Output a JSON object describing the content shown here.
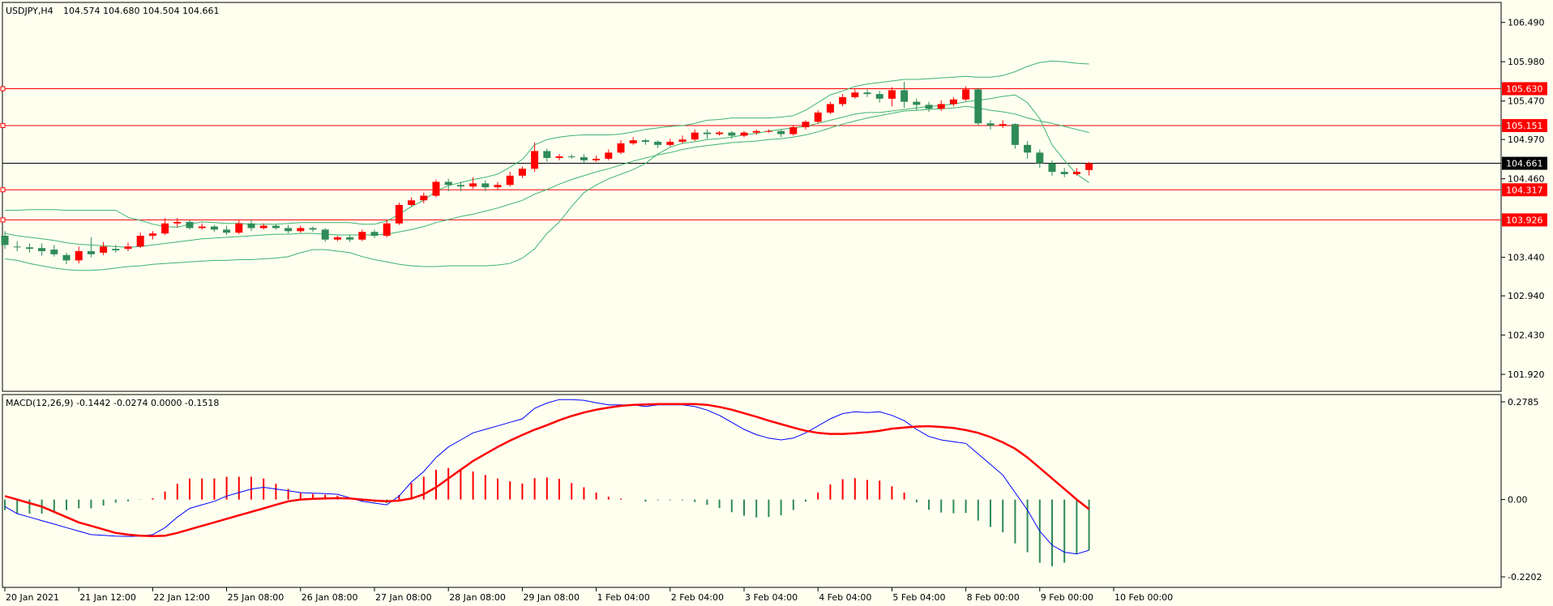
{
  "header": {
    "symbol": "USDJPY,H4",
    "ohlc": "104.574 104.680 104.504 104.661"
  },
  "macd_header": "MACD(12,26,9) -0.1442 -0.0274 0.0000 -0.1518",
  "colors": {
    "background": "#fffff0",
    "bull": "#ff0000",
    "bear": "#2e8b57",
    "bands": "#3cb371",
    "level_line": "#ff0000",
    "current_price": "#000000",
    "macd_line": "#0000ff",
    "signal_line": "#ff0000"
  },
  "price_axis": {
    "ticks": [
      "106.490",
      "105.980",
      "105.470",
      "104.970",
      "104.460",
      "103.440",
      "102.940",
      "102.430",
      "101.920"
    ],
    "level_labels": [
      "105.630",
      "105.151",
      "104.317",
      "103.926"
    ],
    "current_label": "104.661"
  },
  "macd_axis": {
    "ticks": [
      "0.2785",
      "0.00",
      "-0.2202"
    ]
  },
  "time_axis": {
    "labels": [
      "20 Jan 2021",
      "21 Jan 12:00",
      "22 Jan 12:00",
      "25 Jan 08:00",
      "26 Jan 08:00",
      "27 Jan 08:00",
      "28 Jan 08:00",
      "29 Jan 08:00",
      "1 Feb 04:00",
      "2 Feb 04:00",
      "3 Feb 04:00",
      "4 Feb 04:00",
      "5 Feb 04:00",
      "8 Feb 00:00",
      "9 Feb 00:00",
      "10 Feb 00:00"
    ]
  },
  "chart_data": [
    {
      "type": "candlestick",
      "title": "USDJPY,H4",
      "ylim": [
        101.7,
        106.75
      ],
      "levels": [
        105.63,
        105.151,
        104.317,
        103.926
      ],
      "current_price": 104.661,
      "candles": [
        [
          103.72,
          103.6,
          103.78,
          103.55
        ],
        [
          103.58,
          103.57,
          103.65,
          103.52
        ],
        [
          103.57,
          103.55,
          103.62,
          103.5
        ],
        [
          103.56,
          103.52,
          103.62,
          103.46
        ],
        [
          103.54,
          103.48,
          103.6,
          103.45
        ],
        [
          103.47,
          103.4,
          103.5,
          103.35
        ],
        [
          103.4,
          103.52,
          103.58,
          103.36
        ],
        [
          103.52,
          103.48,
          103.7,
          103.44
        ],
        [
          103.5,
          103.58,
          103.64,
          103.47
        ],
        [
          103.55,
          103.53,
          103.6,
          103.5
        ],
        [
          103.55,
          103.58,
          103.63,
          103.52
        ],
        [
          103.58,
          103.72,
          103.76,
          103.56
        ],
        [
          103.72,
          103.75,
          103.78,
          103.67
        ],
        [
          103.75,
          103.88,
          103.95,
          103.73
        ],
        [
          103.88,
          103.9,
          103.95,
          103.83
        ],
        [
          103.9,
          103.82,
          103.92,
          103.8
        ],
        [
          103.82,
          103.84,
          103.88,
          103.8
        ],
        [
          103.84,
          103.8,
          103.86,
          103.77
        ],
        [
          103.8,
          103.76,
          103.85,
          103.73
        ],
        [
          103.76,
          103.88,
          103.92,
          103.74
        ],
        [
          103.88,
          103.82,
          103.93,
          103.78
        ],
        [
          103.82,
          103.85,
          103.88,
          103.8
        ],
        [
          103.85,
          103.82,
          103.87,
          103.8
        ],
        [
          103.82,
          103.78,
          103.86,
          103.75
        ],
        [
          103.78,
          103.82,
          103.85,
          103.76
        ],
        [
          103.82,
          103.8,
          103.84,
          103.77
        ],
        [
          103.8,
          103.67,
          103.82,
          103.64
        ],
        [
          103.67,
          103.7,
          103.72,
          103.65
        ],
        [
          103.7,
          103.67,
          103.73,
          103.64
        ],
        [
          103.67,
          103.77,
          103.8,
          103.65
        ],
        [
          103.77,
          103.72,
          103.8,
          103.69
        ],
        [
          103.72,
          103.88,
          103.92,
          103.7
        ],
        [
          103.88,
          104.12,
          104.15,
          103.86
        ],
        [
          104.12,
          104.18,
          104.22,
          104.1
        ],
        [
          104.18,
          104.24,
          104.28,
          104.14
        ],
        [
          104.24,
          104.42,
          104.45,
          104.22
        ],
        [
          104.42,
          104.38,
          104.46,
          104.3
        ],
        [
          104.38,
          104.36,
          104.42,
          104.3
        ],
        [
          104.36,
          104.4,
          104.48,
          104.33
        ],
        [
          104.4,
          104.35,
          104.44,
          104.3
        ],
        [
          104.35,
          104.38,
          104.42,
          104.32
        ],
        [
          104.38,
          104.5,
          104.55,
          104.36
        ],
        [
          104.5,
          104.59,
          104.62,
          104.47
        ],
        [
          104.59,
          104.82,
          104.93,
          104.55
        ],
        [
          104.82,
          104.73,
          104.85,
          104.68
        ],
        [
          104.73,
          104.75,
          104.78,
          104.7
        ],
        [
          104.75,
          104.74,
          104.78,
          104.72
        ],
        [
          104.74,
          104.7,
          104.78,
          104.66
        ],
        [
          104.7,
          104.72,
          104.76,
          104.68
        ],
        [
          104.72,
          104.8,
          104.84,
          104.7
        ],
        [
          104.8,
          104.92,
          104.96,
          104.78
        ],
        [
          104.92,
          104.96,
          105.0,
          104.9
        ],
        [
          104.96,
          104.94,
          104.98,
          104.9
        ],
        [
          104.94,
          104.9,
          104.96,
          104.86
        ],
        [
          104.9,
          104.94,
          104.98,
          104.88
        ],
        [
          104.94,
          104.97,
          105.02,
          104.92
        ],
        [
          104.97,
          105.06,
          105.1,
          104.95
        ],
        [
          105.06,
          105.04,
          105.1,
          104.98
        ],
        [
          105.04,
          105.06,
          105.08,
          105.02
        ],
        [
          105.06,
          105.02,
          105.08,
          104.98
        ],
        [
          105.02,
          105.06,
          105.08,
          105.0
        ],
        [
          105.06,
          105.08,
          105.1,
          105.03
        ],
        [
          105.08,
          105.08,
          105.1,
          105.06
        ],
        [
          105.08,
          105.04,
          105.1,
          105.0
        ],
        [
          105.04,
          105.13,
          105.16,
          105.02
        ],
        [
          105.13,
          105.2,
          105.22,
          105.1
        ],
        [
          105.2,
          105.32,
          105.35,
          105.18
        ],
        [
          105.32,
          105.43,
          105.46,
          105.3
        ],
        [
          105.43,
          105.52,
          105.56,
          105.4
        ],
        [
          105.52,
          105.58,
          105.62,
          105.5
        ],
        [
          105.58,
          105.56,
          105.62,
          105.52
        ],
        [
          105.56,
          105.5,
          105.6,
          105.45
        ],
        [
          105.5,
          105.61,
          105.65,
          105.4
        ],
        [
          105.61,
          105.46,
          105.72,
          105.38
        ],
        [
          105.46,
          105.42,
          105.5,
          105.35
        ],
        [
          105.42,
          105.37,
          105.46,
          105.33
        ],
        [
          105.37,
          105.43,
          105.48,
          105.34
        ],
        [
          105.43,
          105.49,
          105.52,
          105.4
        ],
        [
          105.49,
          105.62,
          105.66,
          105.47
        ],
        [
          105.62,
          105.18,
          105.64,
          105.15
        ],
        [
          105.18,
          105.15,
          105.22,
          105.1
        ],
        [
          105.15,
          105.17,
          105.22,
          105.12
        ],
        [
          105.17,
          104.9,
          105.18,
          104.85
        ],
        [
          104.9,
          104.8,
          104.95,
          104.72
        ],
        [
          104.8,
          104.66,
          104.84,
          104.6
        ],
        [
          104.66,
          104.55,
          104.7,
          104.5
        ],
        [
          104.55,
          104.52,
          104.6,
          104.48
        ],
        [
          104.52,
          104.55,
          104.6,
          104.5
        ],
        [
          104.574,
          104.661,
          104.68,
          104.504
        ]
      ],
      "bollinger": {
        "upper": [
          104.05,
          104.05,
          104.06,
          104.06,
          104.06,
          104.05,
          104.05,
          104.05,
          104.05,
          104.05,
          103.96,
          103.92,
          103.87,
          103.84,
          103.83,
          103.87,
          103.9,
          103.89,
          103.88,
          103.88,
          103.87,
          103.87,
          103.87,
          103.88,
          103.89,
          103.89,
          103.89,
          103.89,
          103.89,
          103.87,
          103.87,
          103.91,
          104.0,
          104.1,
          104.18,
          104.3,
          104.37,
          104.41,
          104.45,
          104.48,
          104.52,
          104.61,
          104.71,
          104.9,
          104.97,
          105.0,
          105.02,
          105.03,
          105.03,
          105.03,
          105.04,
          105.07,
          105.1,
          105.12,
          105.14,
          105.15,
          105.18,
          105.22,
          105.23,
          105.25,
          105.25,
          105.25,
          105.25,
          105.26,
          105.28,
          105.35,
          105.45,
          105.55,
          105.6,
          105.66,
          105.69,
          105.71,
          105.73,
          105.75,
          105.75,
          105.76,
          105.77,
          105.78,
          105.79,
          105.78,
          105.78,
          105.8,
          105.85,
          105.92,
          105.97,
          105.99,
          105.98,
          105.96,
          105.95
        ],
        "middle": [
          103.75,
          103.72,
          103.7,
          103.68,
          103.66,
          103.63,
          103.61,
          103.6,
          103.59,
          103.58,
          103.57,
          103.58,
          103.6,
          103.62,
          103.64,
          103.66,
          103.68,
          103.69,
          103.7,
          103.71,
          103.72,
          103.73,
          103.74,
          103.74,
          103.75,
          103.75,
          103.74,
          103.73,
          103.73,
          103.73,
          103.73,
          103.74,
          103.77,
          103.8,
          103.84,
          103.89,
          103.93,
          103.97,
          104.0,
          104.04,
          104.08,
          104.13,
          104.18,
          104.26,
          104.32,
          104.39,
          104.45,
          104.5,
          104.55,
          104.59,
          104.64,
          104.69,
          104.73,
          104.77,
          104.8,
          104.84,
          104.87,
          104.89,
          104.91,
          104.93,
          104.94,
          104.95,
          104.97,
          104.98,
          105.0,
          105.03,
          105.07,
          105.12,
          105.17,
          105.21,
          105.25,
          105.28,
          105.31,
          105.34,
          105.35,
          105.36,
          105.37,
          105.38,
          105.4,
          105.38,
          105.35,
          105.33,
          105.3,
          105.25,
          105.21,
          105.18,
          105.14,
          105.1,
          105.06
        ],
        "lower": [
          103.42,
          103.4,
          103.36,
          103.33,
          103.3,
          103.28,
          103.27,
          103.27,
          103.28,
          103.3,
          103.32,
          103.33,
          103.35,
          103.36,
          103.37,
          103.38,
          103.39,
          103.4,
          103.4,
          103.41,
          103.41,
          103.42,
          103.43,
          103.45,
          103.5,
          103.54,
          103.54,
          103.52,
          103.5,
          103.45,
          103.41,
          103.38,
          103.35,
          103.33,
          103.32,
          103.32,
          103.33,
          103.33,
          103.33,
          103.33,
          103.34,
          103.36,
          103.43,
          103.55,
          103.75,
          103.9,
          104.1,
          104.28,
          104.38,
          104.46,
          104.52,
          104.58,
          104.66,
          104.78,
          104.87,
          104.92,
          104.94,
          104.97,
          104.98,
          105.0,
          105.03,
          105.05,
          105.08,
          105.1,
          105.12,
          105.14,
          105.18,
          105.22,
          105.26,
          105.3,
          105.32,
          105.32,
          105.34,
          105.36,
          105.38,
          105.4,
          105.41,
          105.43,
          105.46,
          105.48,
          105.5,
          105.53,
          105.55,
          105.45,
          105.24,
          104.9,
          104.7,
          104.52,
          104.41
        ]
      }
    },
    {
      "type": "line",
      "title": "MACD(12,26,9) -0.1442 -0.0274 0.0000 -0.1518",
      "ylim": [
        -0.2202,
        0.2785
      ],
      "series": [
        {
          "name": "",
          "color": "#0000ff",
          "values": [
            -0.02,
            -0.04,
            -0.05,
            -0.06,
            -0.07,
            -0.08,
            -0.09,
            -0.1,
            -0.102,
            -0.104,
            -0.105,
            -0.104,
            -0.1,
            -0.08,
            -0.05,
            -0.025,
            -0.015,
            -0.005,
            0.01,
            0.02,
            0.03,
            0.035,
            0.03,
            0.025,
            0.02,
            0.018,
            0.017,
            0.015,
            0.005,
            -0.005,
            -0.01,
            -0.015,
            0.01,
            0.05,
            0.08,
            0.12,
            0.15,
            0.17,
            0.19,
            0.2,
            0.21,
            0.22,
            0.23,
            0.26,
            0.275,
            0.285,
            0.285,
            0.283,
            0.276,
            0.27,
            0.27,
            0.27,
            0.265,
            0.27,
            0.27,
            0.27,
            0.265,
            0.255,
            0.24,
            0.22,
            0.2,
            0.185,
            0.175,
            0.17,
            0.175,
            0.19,
            0.21,
            0.23,
            0.245,
            0.25,
            0.248,
            0.25,
            0.24,
            0.225,
            0.2,
            0.18,
            0.17,
            0.165,
            0.16,
            0.13,
            0.1,
            0.07,
            0.02,
            -0.03,
            -0.09,
            -0.13,
            -0.15,
            -0.155,
            -0.1442
          ]
        },
        {
          "name": "",
          "color": "#ff0000",
          "values": [
            0.01,
            0.0,
            -0.01,
            -0.02,
            -0.035,
            -0.05,
            -0.065,
            -0.075,
            -0.085,
            -0.095,
            -0.1,
            -0.103,
            -0.104,
            -0.103,
            -0.095,
            -0.085,
            -0.075,
            -0.065,
            -0.055,
            -0.045,
            -0.035,
            -0.025,
            -0.015,
            -0.005,
            0.0,
            0.002,
            0.003,
            0.004,
            0.003,
            0.0,
            -0.003,
            -0.005,
            -0.003,
            0.003,
            0.015,
            0.035,
            0.06,
            0.085,
            0.11,
            0.13,
            0.15,
            0.168,
            0.184,
            0.199,
            0.212,
            0.226,
            0.238,
            0.248,
            0.256,
            0.262,
            0.267,
            0.27,
            0.271,
            0.272,
            0.272,
            0.272,
            0.272,
            0.27,
            0.264,
            0.256,
            0.246,
            0.236,
            0.225,
            0.215,
            0.205,
            0.196,
            0.19,
            0.187,
            0.187,
            0.189,
            0.192,
            0.196,
            0.202,
            0.205,
            0.208,
            0.209,
            0.207,
            0.204,
            0.198,
            0.19,
            0.178,
            0.163,
            0.145,
            0.12,
            0.09,
            0.06,
            0.03,
            0.0,
            -0.0274
          ]
        }
      ],
      "histogram": [
        -0.03,
        -0.04,
        -0.04,
        -0.04,
        -0.035,
        -0.03,
        -0.025,
        -0.025,
        -0.017,
        -0.009,
        -0.005,
        -0.001,
        0.004,
        0.023,
        0.045,
        0.06,
        0.06,
        0.06,
        0.065,
        0.065,
        0.065,
        0.06,
        0.045,
        0.03,
        0.02,
        0.016,
        0.014,
        0.011,
        0.002,
        -0.005,
        -0.007,
        -0.01,
        0.013,
        0.047,
        0.065,
        0.085,
        0.09,
        0.085,
        0.08,
        0.07,
        0.06,
        0.052,
        0.046,
        0.061,
        0.063,
        0.059,
        0.047,
        0.035,
        0.02,
        0.008,
        0.003,
        0.0,
        -0.006,
        -0.002,
        -0.002,
        -0.002,
        -0.007,
        -0.015,
        -0.024,
        -0.036,
        -0.046,
        -0.051,
        -0.05,
        -0.045,
        -0.03,
        -0.006,
        0.02,
        0.043,
        0.058,
        0.061,
        0.056,
        0.054,
        0.038,
        0.02,
        -0.008,
        -0.029,
        -0.037,
        -0.039,
        -0.038,
        -0.06,
        -0.078,
        -0.093,
        -0.125,
        -0.15,
        -0.18,
        -0.19,
        -0.18,
        -0.155,
        -0.1442
      ]
    }
  ]
}
